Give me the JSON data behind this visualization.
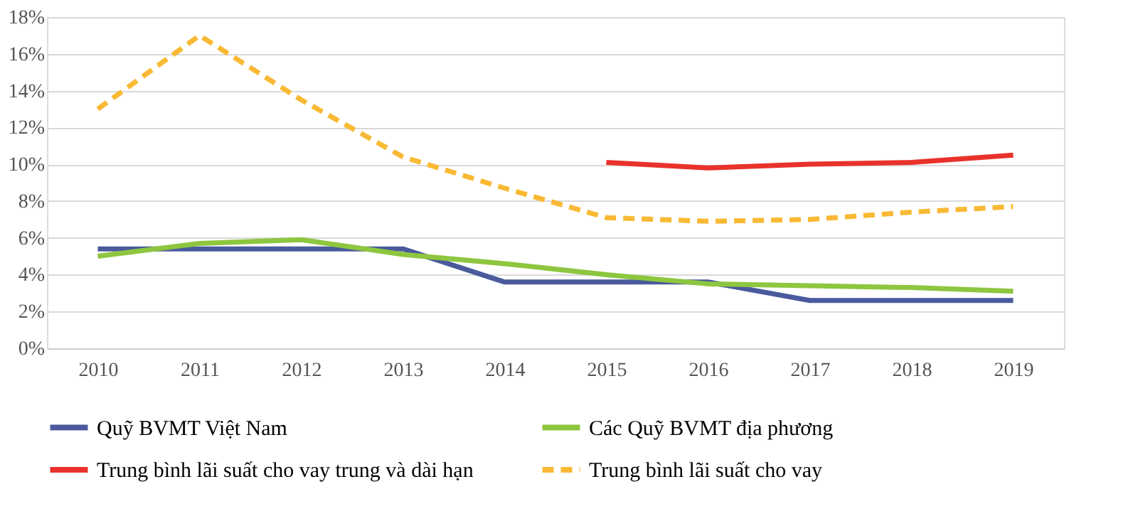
{
  "chart_data": {
    "type": "line",
    "categories": [
      "2010",
      "2011",
      "2012",
      "2013",
      "2014",
      "2015",
      "2016",
      "2017",
      "2018",
      "2019"
    ],
    "ylim": [
      0,
      18
    ],
    "yticks": [
      {
        "value": 0,
        "label": "0%"
      },
      {
        "value": 2,
        "label": "2%"
      },
      {
        "value": 4,
        "label": "4%"
      },
      {
        "value": 6,
        "label": "6%"
      },
      {
        "value": 8,
        "label": "8%"
      },
      {
        "value": 10,
        "label": "10%"
      },
      {
        "value": 12,
        "label": "12%"
      },
      {
        "value": 14,
        "label": "14%"
      },
      {
        "value": 16,
        "label": "16%"
      },
      {
        "value": 18,
        "label": "18%"
      }
    ],
    "grid": "y",
    "legend": "bottom",
    "marker": "none",
    "series": [
      {
        "name": "Quỹ BVMT Việt Nam",
        "color": "#4a5a9c",
        "line_style": "solid",
        "values": [
          5.4,
          5.4,
          5.4,
          5.4,
          3.6,
          3.6,
          3.6,
          2.6,
          2.6,
          2.6
        ]
      },
      {
        "name": "Các Quỹ BVMT địa phương",
        "color": "#8dc63f",
        "line_style": "solid",
        "values": [
          5.0,
          5.7,
          5.9,
          5.1,
          4.6,
          4.0,
          3.5,
          3.4,
          3.3,
          3.1
        ]
      },
      {
        "name": "Trung bình lãi suất cho vay trung và dài hạn",
        "color": "#e8322b",
        "line_style": "solid",
        "values": [
          null,
          null,
          null,
          null,
          null,
          10.1,
          9.8,
          10.0,
          10.1,
          10.5
        ]
      },
      {
        "name": "Trung bình lãi suất cho vay",
        "color": "#f9b934",
        "line_style": "dashed",
        "values": [
          13.0,
          17.0,
          13.5,
          10.4,
          8.7,
          7.1,
          6.9,
          7.0,
          7.4,
          7.7
        ]
      }
    ]
  }
}
